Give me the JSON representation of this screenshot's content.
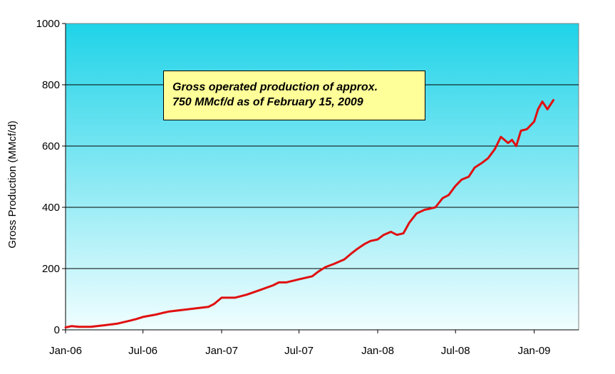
{
  "chart_data": {
    "type": "line",
    "title": "",
    "xlabel": "",
    "ylabel": "Gross Production (MMcf/d)",
    "ylim": [
      0,
      1000
    ],
    "yticks": [
      "0",
      "200",
      "400",
      "600",
      "800",
      "1000"
    ],
    "xticks": [
      "Jan-06",
      "Jul-06",
      "Jan-07",
      "Jul-07",
      "Jan-08",
      "Jul-08",
      "Jan-09"
    ],
    "xlim": [
      "2006-01-01",
      "2009-04-15"
    ],
    "grid": "horizontal",
    "legend": "none",
    "colors": {
      "background_top": "#1fd3e8",
      "background_bottom": "#f1feff",
      "line": "#e01010",
      "annotation_fill": "#ffff99"
    },
    "annotation": [
      "Gross operated production of approx.",
      "750 MMcf/d as of February 15, 2009"
    ],
    "series": [
      {
        "color": "#e01010",
        "x": [
          "2006-01-01",
          "2006-01-15",
          "2006-02-01",
          "2006-03-01",
          "2006-04-01",
          "2006-05-01",
          "2006-06-01",
          "2006-06-15",
          "2006-07-01",
          "2006-08-01",
          "2006-08-15",
          "2006-09-01",
          "2006-10-01",
          "2006-11-01",
          "2006-12-01",
          "2006-12-15",
          "2007-01-01",
          "2007-02-01",
          "2007-03-01",
          "2007-04-01",
          "2007-05-01",
          "2007-05-15",
          "2007-06-01",
          "2007-07-01",
          "2007-08-01",
          "2007-08-15",
          "2007-09-01",
          "2007-09-20",
          "2007-10-15",
          "2007-11-01",
          "2007-11-15",
          "2007-12-01",
          "2007-12-15",
          "2008-01-01",
          "2008-01-15",
          "2008-02-01",
          "2008-02-15",
          "2008-03-01",
          "2008-03-15",
          "2008-04-01",
          "2008-04-20",
          "2008-05-01",
          "2008-05-15",
          "2008-06-01",
          "2008-06-15",
          "2008-07-01",
          "2008-07-15",
          "2008-08-01",
          "2008-08-15",
          "2008-09-01",
          "2008-09-15",
          "2008-10-01",
          "2008-10-15",
          "2008-11-01",
          "2008-11-10",
          "2008-11-20",
          "2008-12-01",
          "2008-12-15",
          "2009-01-01",
          "2009-01-10",
          "2009-01-20",
          "2009-02-01",
          "2009-02-15"
        ],
        "y": [
          8,
          12,
          10,
          10,
          15,
          20,
          30,
          35,
          42,
          50,
          55,
          60,
          65,
          70,
          75,
          85,
          105,
          105,
          115,
          130,
          145,
          155,
          155,
          165,
          175,
          190,
          205,
          215,
          230,
          250,
          265,
          280,
          290,
          295,
          310,
          320,
          310,
          315,
          350,
          380,
          392,
          395,
          400,
          430,
          440,
          470,
          490,
          500,
          530,
          545,
          560,
          590,
          630,
          610,
          620,
          600,
          650,
          655,
          680,
          720,
          745,
          720,
          750
        ]
      }
    ]
  }
}
